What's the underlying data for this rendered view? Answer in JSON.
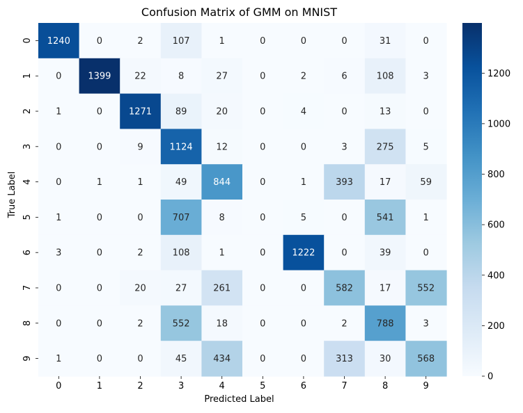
{
  "chart_data": {
    "type": "heatmap",
    "title": "Confusion Matrix of GMM on MNIST",
    "xlabel": "Predicted Label",
    "ylabel": "True Label",
    "x_categories": [
      "0",
      "1",
      "2",
      "3",
      "4",
      "5",
      "6",
      "7",
      "8",
      "9"
    ],
    "y_categories": [
      "0",
      "1",
      "2",
      "3",
      "4",
      "5",
      "6",
      "7",
      "8",
      "9"
    ],
    "values": [
      [
        1240,
        0,
        2,
        107,
        1,
        0,
        0,
        0,
        31,
        0
      ],
      [
        0,
        1399,
        22,
        8,
        27,
        0,
        2,
        6,
        108,
        3
      ],
      [
        1,
        0,
        1271,
        89,
        20,
        0,
        4,
        0,
        13,
        0
      ],
      [
        0,
        0,
        9,
        1124,
        12,
        0,
        0,
        3,
        275,
        5
      ],
      [
        0,
        1,
        1,
        49,
        844,
        0,
        1,
        393,
        17,
        59
      ],
      [
        1,
        0,
        0,
        707,
        8,
        0,
        5,
        0,
        541,
        1
      ],
      [
        3,
        0,
        2,
        108,
        1,
        0,
        1222,
        0,
        39,
        0
      ],
      [
        0,
        0,
        20,
        27,
        261,
        0,
        0,
        582,
        17,
        552
      ],
      [
        0,
        0,
        2,
        552,
        18,
        0,
        0,
        2,
        788,
        3
      ],
      [
        1,
        0,
        0,
        45,
        434,
        0,
        0,
        313,
        30,
        568
      ]
    ],
    "colormap": "Blues",
    "color_range": [
      0,
      1399
    ],
    "colorbar_ticks": [
      0,
      200,
      400,
      600,
      800,
      1000,
      1200
    ],
    "annotate_cells": true
  }
}
